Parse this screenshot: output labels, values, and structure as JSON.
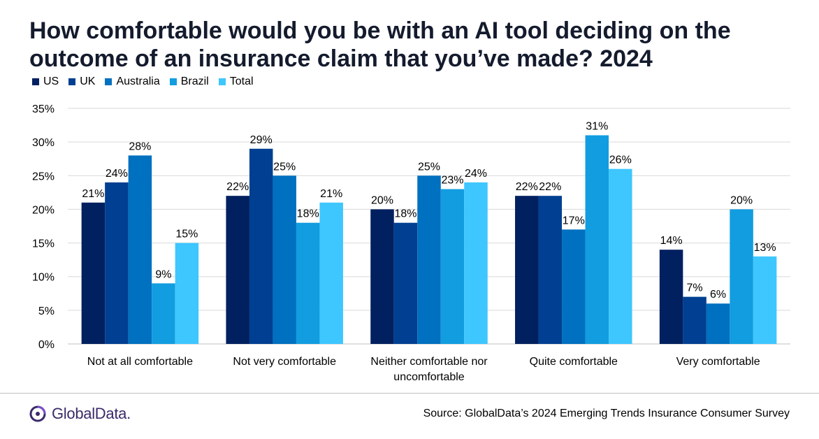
{
  "title": "How comfortable would you be with an AI tool deciding on the outcome of an insurance claim that you’ve made? 2024",
  "legend": [
    {
      "label": "US",
      "color": "#002060"
    },
    {
      "label": "UK",
      "color": "#003f91"
    },
    {
      "label": "Australia",
      "color": "#0070c0"
    },
    {
      "label": "Brazil",
      "color": "#119de0"
    },
    {
      "label": "Total",
      "color": "#3ec6ff"
    }
  ],
  "chart_data": {
    "type": "bar",
    "categories": [
      [
        "Not at all comfortable"
      ],
      [
        "Not very comfortable"
      ],
      [
        "Neither comfortable nor",
        "uncomfortable"
      ],
      [
        "Quite comfortable"
      ],
      [
        "Very comfortable"
      ]
    ],
    "series": [
      {
        "name": "US",
        "color": "#002060",
        "values": [
          21,
          22,
          20,
          22,
          14
        ],
        "labels": [
          "21%",
          "22%",
          "20%",
          "22%",
          "14%"
        ]
      },
      {
        "name": "UK",
        "color": "#003f91",
        "values": [
          24,
          29,
          18,
          22,
          7
        ],
        "labels": [
          "24%",
          "29%",
          "18%",
          "22%",
          "7%"
        ]
      },
      {
        "name": "Australia",
        "color": "#0070c0",
        "values": [
          28,
          25,
          25,
          17,
          6
        ],
        "labels": [
          "28%",
          "25%",
          "25%",
          "17%",
          "6%"
        ]
      },
      {
        "name": "Brazil",
        "color": "#119de0",
        "values": [
          9,
          18,
          23,
          31,
          20
        ],
        "labels": [
          "9%",
          "18%",
          "23%",
          "31%",
          "20%"
        ]
      },
      {
        "name": "Total",
        "color": "#3ec6ff",
        "values": [
          15,
          21,
          24,
          26,
          13
        ],
        "labels": [
          "15%",
          "21%",
          "24%",
          "26%",
          "13%"
        ]
      }
    ],
    "yticks": [
      "0%",
      "5%",
      "10%",
      "15%",
      "20%",
      "25%",
      "30%",
      "35%"
    ],
    "ylim": [
      0,
      35
    ],
    "grid": true,
    "legend_position": "top-left"
  },
  "footer": {
    "logo_text": "GlobalData.",
    "source": "Source: GlobalData’s 2024 Emerging Trends Insurance Consumer Survey"
  }
}
